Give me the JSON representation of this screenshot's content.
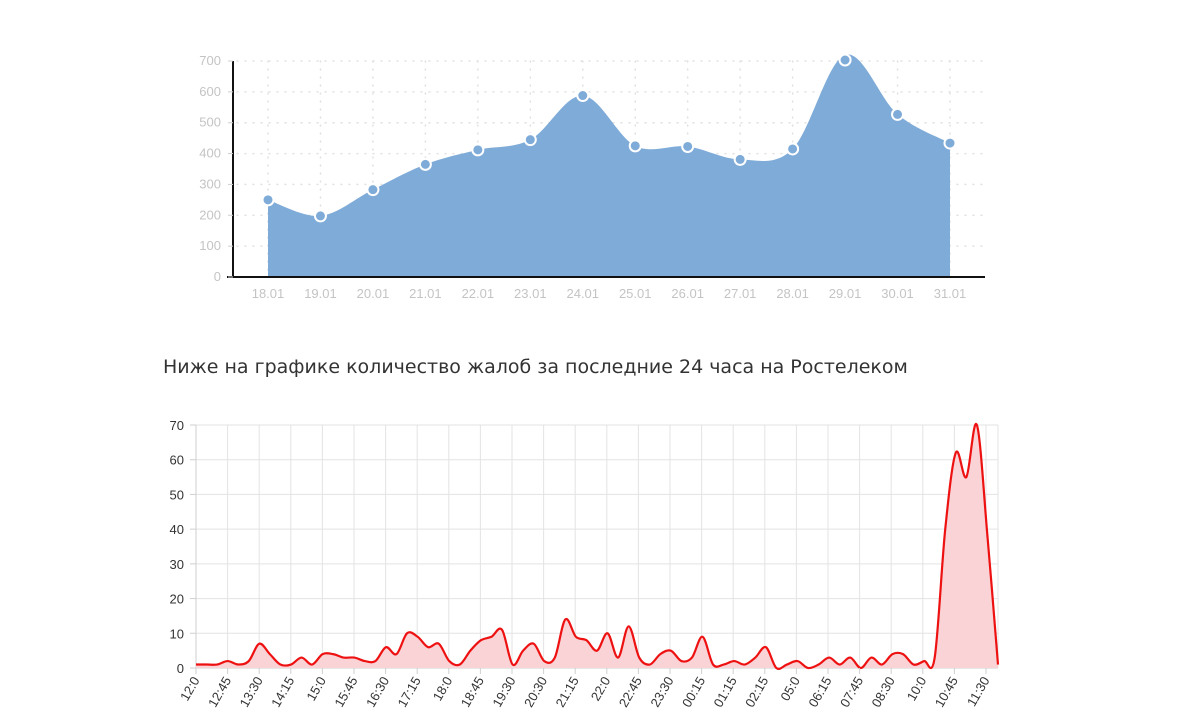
{
  "heading": "Ниже на графике количество жалоб за последние 24 часа на Ростелеком",
  "chart_data": [
    {
      "type": "area",
      "title": "",
      "xlabel": "",
      "ylabel": "",
      "categories": [
        "18.01",
        "19.01",
        "20.01",
        "21.01",
        "22.01",
        "23.01",
        "24.01",
        "25.01",
        "26.01",
        "27.01",
        "28.01",
        "29.01",
        "30.01",
        "31.01"
      ],
      "values": [
        250,
        198,
        283,
        365,
        412,
        445,
        588,
        425,
        423,
        381,
        415,
        720,
        527,
        434
      ],
      "ylim": [
        0,
        700
      ],
      "yticks": [
        0,
        100,
        200,
        300,
        400,
        500,
        600,
        700
      ],
      "grid": true,
      "color": "#7fabd8",
      "point_color": "#7fabd8"
    },
    {
      "type": "area",
      "title": "",
      "xlabel": "",
      "ylabel": "",
      "tick_labels": [
        "12:0",
        "12:45",
        "13:30",
        "14:15",
        "15:0",
        "15:45",
        "16:30",
        "17:15",
        "18:0",
        "18:45",
        "19:30",
        "20:30",
        "21:15",
        "22:0",
        "22:45",
        "23:30",
        "00:15",
        "01:15",
        "02:15",
        "05:0",
        "06:15",
        "07:45",
        "08:30",
        "10:0",
        "10:45",
        "11:30"
      ],
      "values": [
        1,
        1,
        1,
        2,
        1,
        2,
        7,
        4,
        1,
        1,
        3,
        1,
        4,
        4,
        3,
        3,
        2,
        2,
        6,
        4,
        10,
        9,
        6,
        7,
        2,
        1,
        5,
        8,
        9,
        11,
        1,
        5,
        7,
        2,
        3,
        14,
        9,
        8,
        5,
        10,
        3,
        12,
        3,
        1,
        4,
        5,
        2,
        3,
        9,
        1,
        1,
        2,
        1,
        3,
        6,
        0,
        1,
        2,
        0,
        1,
        3,
        1,
        3,
        0,
        3,
        1,
        4,
        4,
        1,
        2,
        3,
        40,
        62,
        55,
        70,
        38,
        1
      ],
      "ylim": [
        0,
        70
      ],
      "yticks": [
        0,
        10,
        20,
        30,
        40,
        50,
        60,
        70
      ],
      "grid": true,
      "line_color": "#ee1111",
      "fill_color": "#f9d3d6"
    }
  ]
}
